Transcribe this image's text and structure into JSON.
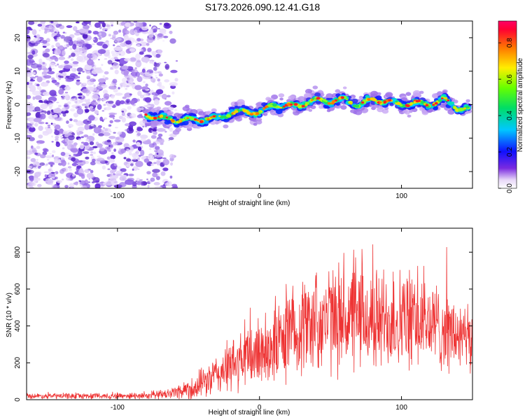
{
  "title": "S173.2026.090.12.41.G18",
  "chart_data": [
    {
      "type": "heatmap",
      "name": "spectrogram",
      "xlabel": "Height of straight line (km)",
      "ylabel": "Frequency (Hz)",
      "xlim": [
        -164,
        150
      ],
      "ylim": [
        -25,
        25
      ],
      "xticks": [
        -100,
        0,
        100
      ],
      "xtick_labels": [
        "-100",
        "0",
        "100"
      ],
      "yticks": [
        -20,
        -10,
        0,
        10,
        20
      ],
      "ytick_labels": [
        "-20",
        "-10",
        "0",
        "10",
        "20"
      ],
      "noise_region_x": [
        -164,
        -68
      ],
      "signal_track": {
        "x": [
          -80,
          -70,
          -60,
          -50,
          -40,
          -30,
          -20,
          -10,
          0,
          10,
          20,
          30,
          40,
          50,
          60,
          70,
          80,
          90,
          100,
          110,
          120,
          130,
          140,
          148
        ],
        "y": [
          -3,
          -4,
          -4.5,
          -4.5,
          -4.5,
          -4,
          -2.5,
          -2,
          -2.5,
          0,
          -0.5,
          0,
          1.5,
          1,
          1.5,
          0,
          1.5,
          1,
          0,
          0.5,
          0,
          1.5,
          -1,
          -1.5
        ]
      },
      "colorbar": {
        "label": "Normalized spectral amplitude",
        "range": [
          0,
          0.92
        ],
        "ticks": [
          0,
          0.2,
          0.4,
          0.6,
          0.8
        ],
        "tick_labels": [
          "0.0",
          "0.2",
          "0.4",
          "0.6",
          "0.8"
        ]
      }
    },
    {
      "type": "line",
      "name": "snr",
      "xlabel": "Height of straight line (km)",
      "ylabel": "SNR (10 * v/v)",
      "xlim": [
        -164,
        150
      ],
      "ylim": [
        0,
        930
      ],
      "xticks": [
        -100,
        0,
        100
      ],
      "xtick_labels": [
        "-100",
        "0",
        "100"
      ],
      "yticks": [
        0,
        200,
        400,
        600,
        800
      ],
      "ytick_labels": [
        "0",
        "200",
        "400",
        "600",
        "800"
      ],
      "series": [
        {
          "name": "SNR",
          "color": "#ee3333",
          "envelope": {
            "x": [
              -164,
              -120,
              -80,
              -65,
              -55,
              -45,
              -35,
              -25,
              -15,
              -5,
              5,
              15,
              25,
              35,
              45,
              55,
              65,
              75,
              85,
              95,
              105,
              115,
              125,
              135,
              145,
              150
            ],
            "mean": [
              20,
              20,
              22,
              30,
              50,
              70,
              110,
              160,
              200,
              240,
              280,
              320,
              380,
              420,
              430,
              440,
              440,
              430,
              430,
              440,
              430,
              420,
              400,
              360,
              320,
              300
            ],
            "spread": [
              12,
              14,
              16,
              25,
              40,
              60,
              80,
              110,
              140,
              160,
              180,
              200,
              220,
              230,
              240,
              250,
              250,
              240,
              240,
              240,
              230,
              220,
              200,
              180,
              160,
              150
            ]
          }
        }
      ]
    }
  ]
}
